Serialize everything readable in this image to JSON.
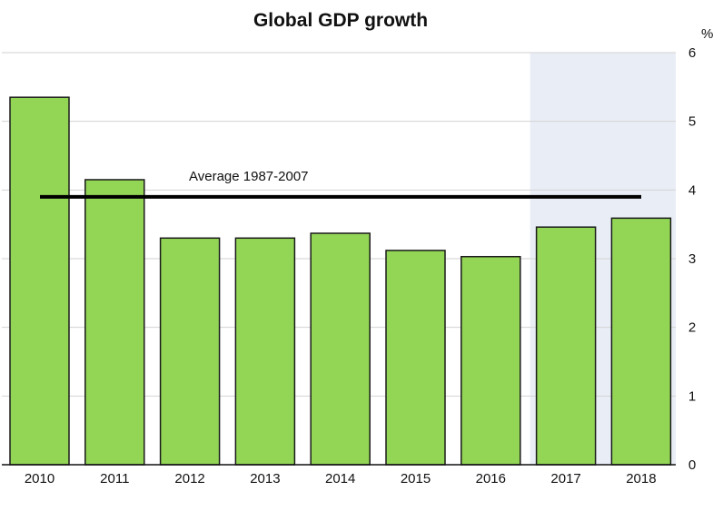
{
  "chart_data": {
    "type": "bar",
    "title": "Global GDP growth",
    "unit_label": "%",
    "categories": [
      "2010",
      "2011",
      "2012",
      "2013",
      "2014",
      "2015",
      "2016",
      "2017",
      "2018"
    ],
    "values": [
      5.35,
      4.15,
      3.3,
      3.3,
      3.37,
      3.12,
      3.03,
      3.46,
      3.59
    ],
    "ylim": [
      0,
      6
    ],
    "y_ticks": [
      "0",
      "1",
      "2",
      "3",
      "4",
      "5",
      "6"
    ],
    "y_axis_side": "right",
    "grid": true,
    "forecast_shading_from": "2017",
    "reference_line": {
      "label": "Average 1987-2007",
      "value": 3.9
    },
    "colors": {
      "bar_fill": "#93d656",
      "bar_stroke": "#1a1a1a",
      "shade": "#e9eef6",
      "grid": "#d2d2d2",
      "line": "#000000"
    }
  }
}
